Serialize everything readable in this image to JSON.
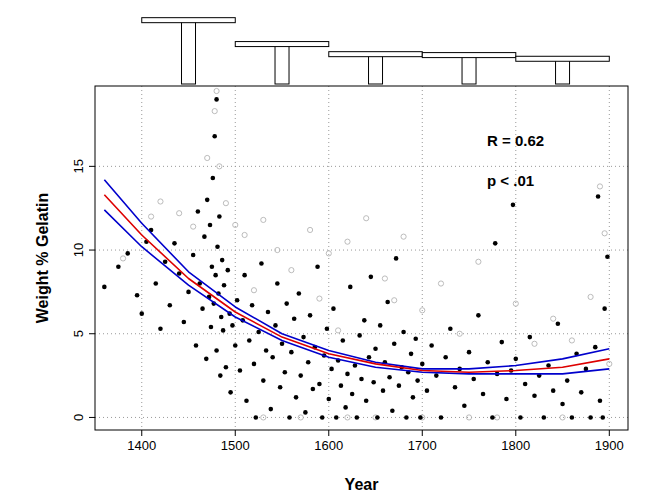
{
  "chart_data": [
    {
      "type": "scatter",
      "x_label": "Year",
      "y_label": "Weight % Gelatin",
      "annotations": [
        "R = 0.62",
        "p < .01"
      ],
      "xlim": [
        1350,
        1920
      ],
      "ylim": [
        -0.75,
        19.8
      ],
      "xticks": [
        1400,
        1500,
        1600,
        1700,
        1800,
        1900
      ],
      "yticks": [
        0,
        5,
        10,
        15
      ],
      "grid": true,
      "series": [
        {
          "type": "scatter",
          "color": "#b4b4b4",
          "marker": "open_circle",
          "x": [
            1380,
            1410,
            1420,
            1440,
            1455,
            1470,
            1478,
            1480,
            1483,
            1490,
            1500,
            1510,
            1520,
            1530,
            1545,
            1560,
            1570,
            1580,
            1590,
            1600,
            1610,
            1620,
            1640,
            1650,
            1660,
            1670,
            1680,
            1700,
            1720,
            1740,
            1760,
            1780,
            1800,
            1820,
            1840,
            1860,
            1880,
            1890,
            1895,
            1900,
            1530,
            1620,
            1700,
            1750,
            1850
          ],
          "values": [
            9.5,
            12.0,
            12.9,
            12.2,
            11.4,
            15.5,
            18.3,
            19.5,
            15.0,
            12.8,
            11.5,
            10.9,
            7.6,
            11.8,
            10.0,
            8.8,
            0.0,
            11.2,
            7.1,
            9.8,
            5.2,
            10.5,
            11.9,
            0.0,
            8.3,
            7.0,
            10.8,
            6.4,
            8.0,
            5.0,
            9.3,
            0.0,
            6.8,
            4.4,
            5.9,
            4.6,
            7.2,
            13.8,
            11.0,
            3.2,
            0.0,
            0.0,
            0.0,
            0.0,
            0.0
          ]
        },
        {
          "type": "scatter",
          "color": "#000000",
          "marker": "circle",
          "x": [
            1360,
            1375,
            1385,
            1395,
            1400,
            1405,
            1410,
            1415,
            1420,
            1425,
            1430,
            1435,
            1440,
            1445,
            1450,
            1455,
            1458,
            1460,
            1462,
            1465,
            1467,
            1469,
            1470,
            1472,
            1473,
            1474,
            1475,
            1476,
            1477,
            1478,
            1479,
            1480,
            1480,
            1481,
            1482,
            1483,
            1484,
            1485,
            1486,
            1487,
            1488,
            1490,
            1492,
            1494,
            1495,
            1497,
            1500,
            1502,
            1505,
            1508,
            1510,
            1512,
            1515,
            1518,
            1520,
            1522,
            1525,
            1528,
            1530,
            1533,
            1535,
            1538,
            1540,
            1543,
            1545,
            1548,
            1550,
            1553,
            1555,
            1558,
            1560,
            1563,
            1565,
            1568,
            1570,
            1573,
            1575,
            1578,
            1580,
            1583,
            1585,
            1588,
            1590,
            1593,
            1595,
            1598,
            1600,
            1603,
            1605,
            1608,
            1610,
            1613,
            1615,
            1618,
            1620,
            1623,
            1625,
            1628,
            1630,
            1633,
            1635,
            1638,
            1640,
            1643,
            1645,
            1648,
            1650,
            1652,
            1655,
            1658,
            1660,
            1663,
            1665,
            1668,
            1670,
            1672,
            1675,
            1678,
            1680,
            1683,
            1685,
            1688,
            1690,
            1693,
            1695,
            1698,
            1700,
            1705,
            1710,
            1715,
            1720,
            1725,
            1730,
            1735,
            1740,
            1745,
            1750,
            1755,
            1760,
            1765,
            1770,
            1775,
            1778,
            1780,
            1785,
            1790,
            1795,
            1797,
            1800,
            1805,
            1810,
            1815,
            1820,
            1825,
            1830,
            1835,
            1840,
            1845,
            1850,
            1855,
            1860,
            1865,
            1870,
            1875,
            1880,
            1885,
            1888,
            1890,
            1893,
            1895,
            1898
          ],
          "values": [
            7.8,
            9.0,
            9.8,
            7.3,
            6.2,
            10.5,
            11.2,
            8.0,
            5.3,
            9.3,
            6.7,
            10.4,
            8.6,
            5.7,
            7.5,
            9.7,
            4.3,
            12.3,
            8.0,
            6.5,
            10.8,
            3.5,
            13.0,
            7.2,
            11.5,
            5.4,
            9.0,
            14.3,
            6.8,
            16.8,
            8.5,
            19.0,
            4.0,
            10.2,
            7.4,
            12.0,
            2.5,
            6.0,
            9.4,
            5.2,
            7.9,
            3.0,
            8.8,
            6.2,
            1.5,
            5.5,
            4.3,
            7.0,
            2.8,
            5.8,
            8.5,
            1.0,
            4.6,
            6.7,
            3.2,
            0.0,
            5.1,
            9.2,
            2.2,
            4.0,
            6.3,
            0.5,
            3.6,
            5.5,
            8.0,
            1.8,
            4.4,
            2.7,
            6.8,
            0.0,
            3.9,
            5.9,
            1.2,
            7.4,
            2.5,
            4.8,
            0.3,
            3.3,
            6.1,
            1.7,
            4.2,
            9.0,
            2.0,
            0.0,
            3.7,
            5.3,
            1.1,
            2.9,
            6.5,
            0.0,
            3.4,
            1.9,
            4.6,
            0.6,
            2.6,
            7.8,
            1.4,
            3.1,
            0.0,
            4.9,
            2.3,
            5.8,
            1.0,
            3.6,
            8.4,
            2.1,
            4.1,
            0.0,
            5.5,
            1.6,
            3.3,
            6.9,
            2.4,
            0.4,
            4.4,
            9.5,
            1.9,
            3.0,
            5.1,
            0.0,
            2.7,
            3.8,
            1.2,
            4.7,
            2.2,
            0.0,
            3.2,
            1.6,
            4.3,
            2.5,
            0.0,
            3.6,
            5.3,
            1.8,
            2.9,
            0.7,
            3.9,
            2.3,
            6.1,
            1.4,
            3.3,
            0.0,
            10.4,
            2.6,
            4.5,
            1.1,
            2.8,
            12.7,
            3.5,
            0.0,
            2.0,
            4.8,
            1.3,
            2.5,
            0.0,
            3.1,
            1.6,
            5.6,
            0.8,
            2.2,
            0.0,
            3.8,
            1.5,
            2.9,
            0.0,
            4.2,
            13.2,
            1.0,
            0.0,
            6.5,
            9.6
          ]
        },
        {
          "type": "line",
          "color": "#0000cc",
          "line_style": "solid",
          "x": [
            1360,
            1400,
            1450,
            1500,
            1550,
            1600,
            1650,
            1700,
            1750,
            1800,
            1850,
            1900
          ],
          "values": [
            14.2,
            11.6,
            8.7,
            6.6,
            5.0,
            4.0,
            3.3,
            2.9,
            2.9,
            3.1,
            3.5,
            4.1
          ]
        },
        {
          "type": "line",
          "color": "#0000cc",
          "line_style": "solid",
          "x": [
            1360,
            1400,
            1450,
            1500,
            1550,
            1600,
            1650,
            1700,
            1750,
            1800,
            1850,
            1900
          ],
          "values": [
            12.4,
            10.2,
            7.9,
            6.0,
            4.6,
            3.6,
            3.0,
            2.7,
            2.6,
            2.6,
            2.6,
            2.9
          ]
        },
        {
          "type": "line",
          "color": "#dd0000",
          "line_style": "solid",
          "x": [
            1360,
            1400,
            1450,
            1500,
            1550,
            1600,
            1650,
            1700,
            1750,
            1800,
            1850,
            1900
          ],
          "values": [
            13.3,
            10.9,
            8.3,
            6.3,
            4.8,
            3.8,
            3.2,
            2.8,
            2.7,
            2.8,
            3.0,
            3.5
          ]
        }
      ]
    },
    {
      "type": "histogram",
      "xlim": [
        1350,
        1920
      ],
      "ylim": [
        0,
        7.4
      ],
      "tick_labels": false,
      "color": "#000000",
      "bins": [
        1400,
        1500,
        1600,
        1700,
        1800,
        1900
      ],
      "values": [
        7.0,
        4.4,
        3.3,
        3.2,
        2.8
      ]
    }
  ]
}
